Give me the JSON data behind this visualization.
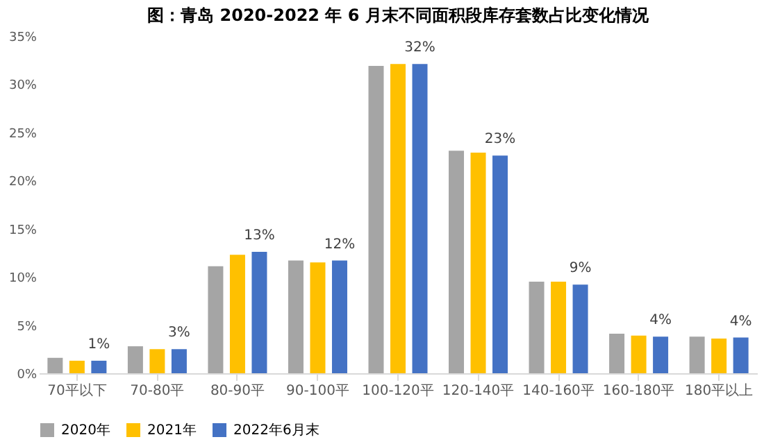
{
  "chart_data": {
    "type": "bar",
    "title": "图：青岛 2020-2022 年 6 月末不同面积段库存套数占比变化情况",
    "categories": [
      "70平以下",
      "70-80平",
      "80-90平",
      "90-100平",
      "100-120平",
      "120-140平",
      "140-160平",
      "160-180平",
      "180平以上"
    ],
    "series": [
      {
        "name": "2020年",
        "color": "#a5a5a5",
        "values": [
          1.6,
          2.8,
          11.1,
          11.7,
          31.9,
          23.1,
          9.5,
          4.1,
          3.8
        ]
      },
      {
        "name": "2021年",
        "color": "#ffc000",
        "values": [
          1.3,
          2.5,
          12.3,
          11.5,
          32.1,
          22.9,
          9.5,
          3.9,
          3.6
        ]
      },
      {
        "name": "2022年6月末",
        "color": "#4472c4",
        "values": [
          1.3,
          2.5,
          12.6,
          11.7,
          32.1,
          22.6,
          9.2,
          3.8,
          3.7
        ],
        "value_labels": [
          "1%",
          "3%",
          "13%",
          "12%",
          "32%",
          "23%",
          "9%",
          "4%",
          "4%"
        ]
      }
    ],
    "ylim": [
      0,
      35
    ],
    "yticks": [
      {
        "value": 0,
        "label": "0%"
      },
      {
        "value": 5,
        "label": "5%"
      },
      {
        "value": 10,
        "label": "10%"
      },
      {
        "value": 15,
        "label": "15%"
      },
      {
        "value": 20,
        "label": "20%"
      },
      {
        "value": 25,
        "label": "25%"
      },
      {
        "value": 30,
        "label": "30%"
      },
      {
        "value": 35,
        "label": "35%"
      }
    ],
    "grid": false,
    "legend": "bottom"
  }
}
